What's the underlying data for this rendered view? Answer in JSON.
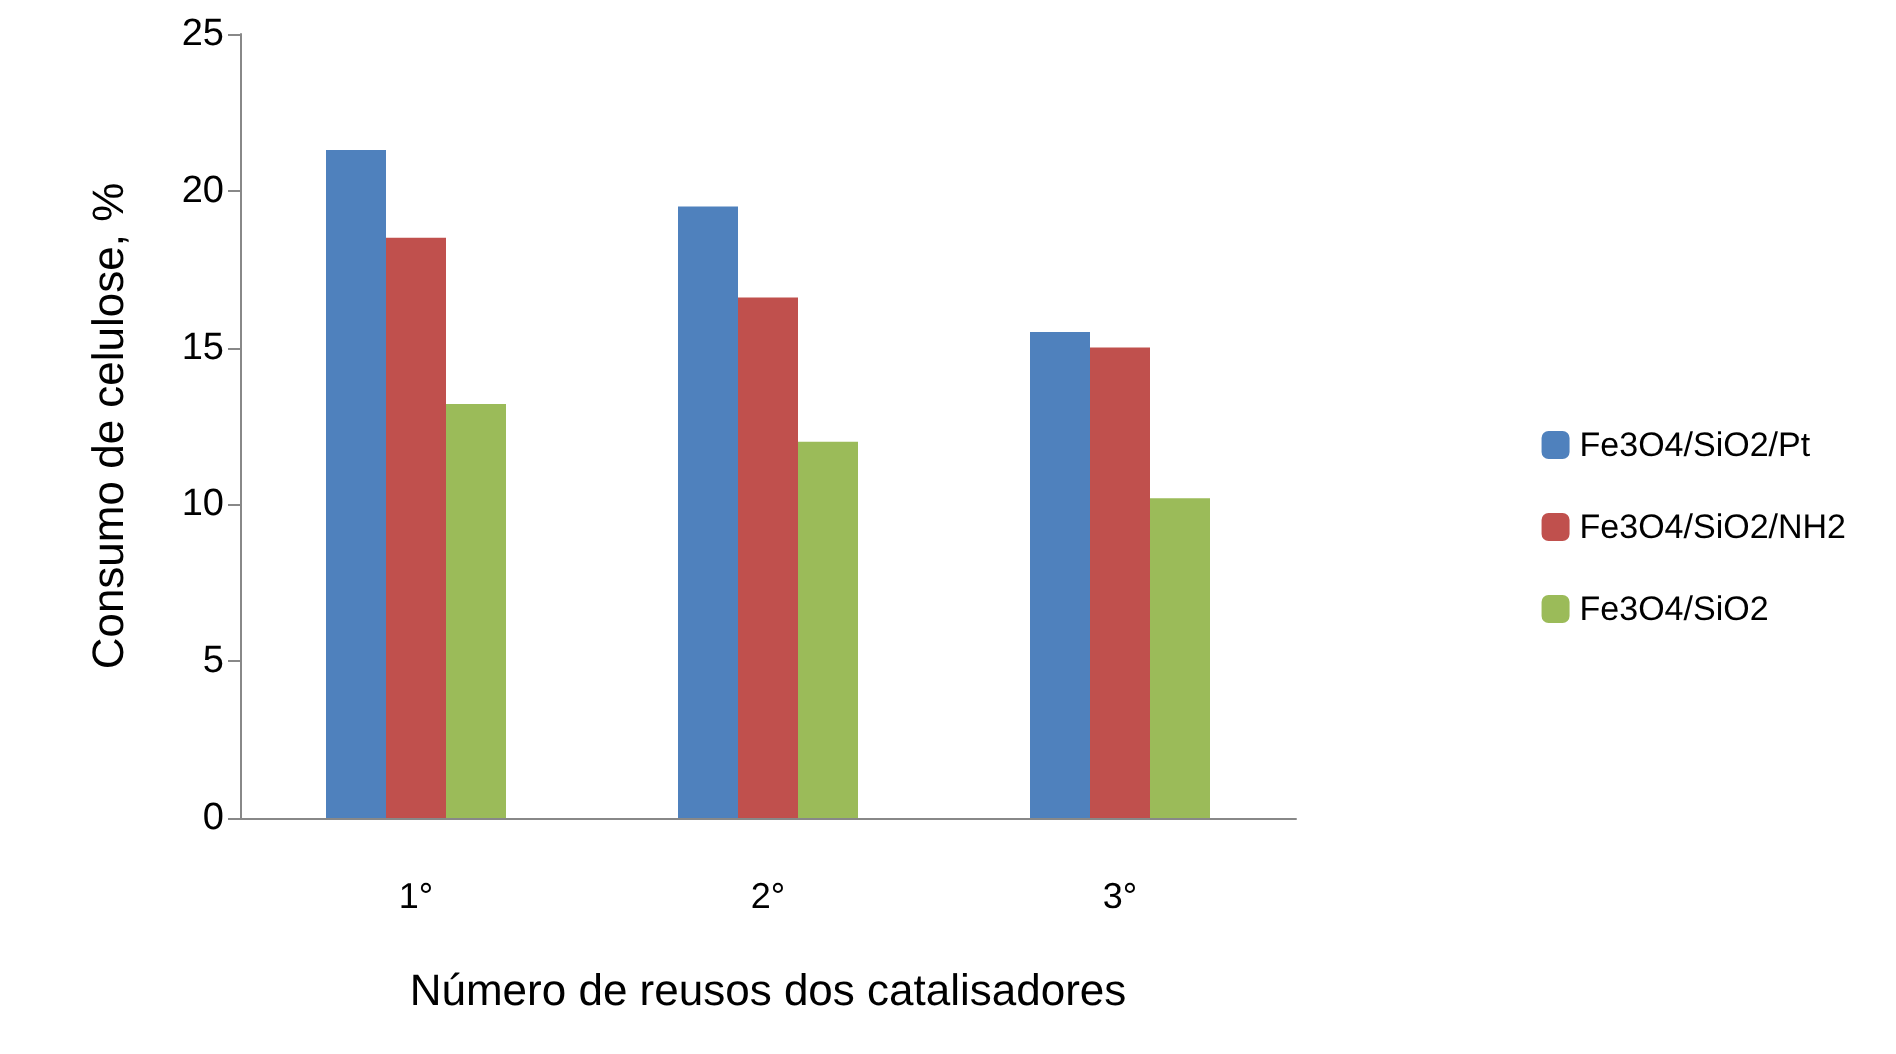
{
  "chart_data": {
    "type": "bar",
    "xlabel": "Número de reusos dos catalisadores",
    "ylabel": "Consumo de celulose, %",
    "categories": [
      "1°",
      "2°",
      "3°"
    ],
    "series": [
      {
        "name": "Fe3O4/SiO2/Pt",
        "color": "#4f81bd",
        "values": [
          21.3,
          19.5,
          15.5
        ]
      },
      {
        "name": "Fe3O4/SiO2/NH2",
        "color": "#c0504d",
        "values": [
          18.5,
          16.6,
          15.0
        ]
      },
      {
        "name": "Fe3O4/SiO2",
        "color": "#9bbb59",
        "values": [
          13.2,
          12.0,
          10.2
        ]
      }
    ],
    "ylim": [
      0,
      25
    ],
    "yticks": [
      0,
      5,
      10,
      15,
      20,
      25
    ],
    "grid": false,
    "legend": "right"
  }
}
